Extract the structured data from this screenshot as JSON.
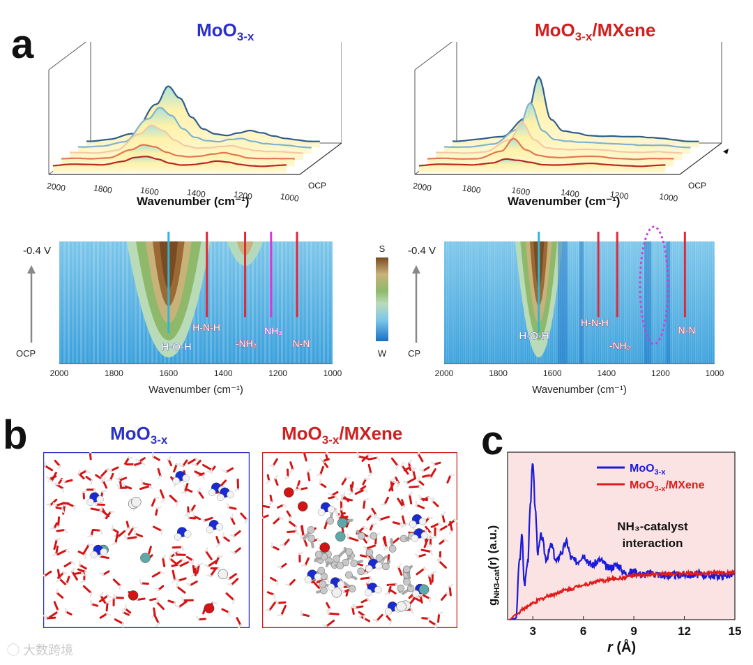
{
  "panel_labels": {
    "a": "a",
    "b": "b",
    "c": "c"
  },
  "panel_a": {
    "left_title": {
      "base": "MoO",
      "sub": "3-x"
    },
    "right_title": {
      "base": "MoO",
      "sub": "3-x",
      "rest": "/MXene"
    },
    "waterfall_xlabel": "Wavenumber (cm⁻¹)",
    "waterfall_ticks": [
      "2000",
      "1800",
      "1600",
      "1400",
      "1200",
      "1000"
    ],
    "depth_top": "-0.4 V",
    "depth_bottom": "OCP",
    "map_top": "-0.4 V",
    "map_bottom": "OCP",
    "map_xlabel": "Wavenumber (cm⁻¹)",
    "map_ticks": [
      "2000",
      "1800",
      "1600",
      "1400",
      "1200",
      "1000"
    ],
    "colorbar_top": "S",
    "colorbar_bottom": "W",
    "left_markers": {
      "hoh": "H-O-H",
      "hnnh": "H-N-H",
      "nh2": "-NH₂",
      "nh3": "NH₃",
      "nn": "N-N"
    },
    "right_markers": {
      "hoh": "H-O-H",
      "hnnh": "H-N-H",
      "nh2": "-NH₂",
      "nn": "N-N"
    },
    "colors": {
      "hoh": "#2fb5d6",
      "nh": "#e0283a",
      "nh3": "#d63ad6",
      "ellipse": "#cc3fd6"
    }
  },
  "panel_b": {
    "left_title": {
      "base": "MoO",
      "sub": "3-x"
    },
    "right_title": {
      "base": "MoO",
      "sub": "3-x",
      "rest": "/MXene"
    }
  },
  "panel_c": {
    "ylabel_main": "g",
    "ylabel_sub": "NH3-cat",
    "ylabel_rest": "(r)  (a.u.)",
    "xlabel_italic": "r",
    "xlabel_rest": " (Å)",
    "annotation_line1": "NH₃-catalyst",
    "annotation_line2": "interaction",
    "legend": [
      {
        "base": "MoO",
        "sub": "3-x",
        "rest": "",
        "color": "#1a1adb"
      },
      {
        "base": "MoO",
        "sub": "3-x",
        "rest": "/MXene",
        "color": "#e01b1b"
      }
    ]
  },
  "watermark": "大数跨境",
  "chart_data": [
    {
      "type": "line",
      "panel": "a-left",
      "note": "in-situ FTIR waterfall, MoO3-x",
      "xlabel": "Wavenumber (cm⁻¹)",
      "xlim": [
        2000,
        1000
      ],
      "x": [
        2000,
        1900,
        1800,
        1700,
        1650,
        1600,
        1550,
        1500,
        1450,
        1400,
        1350,
        1300,
        1250,
        1200,
        1150,
        1100,
        1050,
        1000
      ],
      "series": [
        {
          "values": [
            0,
            0.05,
            0.1,
            0.3,
            0.5,
            0.55,
            0.4,
            0.2,
            0.1,
            0.1,
            0.15,
            0.25,
            0.2,
            0.1,
            0.05,
            0.0,
            0.0,
            0.0
          ]
        },
        {
          "values": [
            0,
            0.05,
            0.15,
            0.6,
            0.9,
            0.8,
            0.5,
            0.3,
            0.2,
            0.2,
            0.3,
            0.4,
            0.3,
            0.15,
            0.1,
            0.05,
            0.0,
            0.0
          ]
        },
        {
          "values": [
            0,
            0.05,
            0.2,
            1.2,
            1.8,
            1.5,
            0.9,
            0.5,
            0.3,
            0.3,
            0.4,
            0.5,
            0.35,
            0.2,
            0.1,
            0.05,
            0.0,
            0.0
          ]
        },
        {
          "values": [
            0,
            0.1,
            0.3,
            1.8,
            2.6,
            2.1,
            1.2,
            0.6,
            0.35,
            0.3,
            0.5,
            0.6,
            0.4,
            0.2,
            0.1,
            0.05,
            0.0,
            0.0
          ]
        },
        {
          "values": [
            0,
            0.1,
            0.4,
            2.4,
            3.6,
            2.8,
            1.5,
            0.7,
            0.4,
            0.35,
            0.55,
            0.7,
            0.5,
            0.25,
            0.1,
            0.05,
            0.0,
            0.0
          ]
        }
      ]
    },
    {
      "type": "line",
      "panel": "a-right",
      "note": "in-situ FTIR waterfall, MoO3-x/MXene",
      "xlabel": "Wavenumber (cm⁻¹)",
      "xlim": [
        2000,
        1000
      ],
      "x": [
        2000,
        1900,
        1800,
        1700,
        1650,
        1600,
        1550,
        1500,
        1450,
        1400,
        1350,
        1300,
        1250,
        1200,
        1150,
        1100,
        1050,
        1000
      ],
      "series": [
        {
          "values": [
            0,
            0.05,
            0.1,
            0.2,
            0.4,
            0.3,
            0.2,
            0.1,
            0.1,
            0.1,
            0.1,
            0.1,
            0.05,
            0.05,
            0.05,
            0.0,
            0.0,
            0.0
          ]
        },
        {
          "values": [
            0,
            0.05,
            0.1,
            0.5,
            1.3,
            0.6,
            0.3,
            0.2,
            0.15,
            0.15,
            0.15,
            0.15,
            0.1,
            0.1,
            0.05,
            0.05,
            0.0,
            0.0
          ]
        },
        {
          "values": [
            0,
            0.05,
            0.1,
            0.8,
            2.0,
            0.9,
            0.4,
            0.3,
            0.2,
            0.2,
            0.2,
            0.2,
            0.15,
            0.1,
            0.05,
            0.05,
            0.0,
            0.0
          ]
        },
        {
          "values": [
            0,
            0.05,
            0.15,
            1.1,
            2.9,
            1.1,
            0.5,
            0.35,
            0.25,
            0.25,
            0.25,
            0.25,
            0.2,
            0.1,
            0.05,
            0.05,
            0.0,
            0.0
          ]
        },
        {
          "values": [
            0,
            0.1,
            0.2,
            1.5,
            4.2,
            1.4,
            0.6,
            0.45,
            0.3,
            0.3,
            0.35,
            0.3,
            0.25,
            0.15,
            0.1,
            0.05,
            0.0,
            0.0
          ]
        }
      ]
    },
    {
      "type": "heatmap",
      "panel": "a-map-left",
      "xlabel": "Wavenumber (cm⁻¹)",
      "xlim": [
        2000,
        1000
      ],
      "markers": [
        {
          "label": "H-O-H",
          "x": 1600
        },
        {
          "label": "H-N-H",
          "x": 1460
        },
        {
          "label": "-NH₂",
          "x": 1320
        },
        {
          "label": "NH₃",
          "x": 1225
        },
        {
          "label": "N-N",
          "x": 1130
        }
      ]
    },
    {
      "type": "heatmap",
      "panel": "a-map-right",
      "xlabel": "Wavenumber (cm⁻¹)",
      "xlim": [
        2000,
        1000
      ],
      "markers": [
        {
          "label": "H-O-H",
          "x": 1650
        },
        {
          "label": "H-N-H",
          "x": 1430
        },
        {
          "label": "-NH₂",
          "x": 1360
        },
        {
          "label": "N-N",
          "x": 1110
        }
      ]
    },
    {
      "type": "line",
      "panel": "c",
      "xlabel": "r (Å)",
      "ylabel": "gNH3-cat(r)  (a.u.)",
      "xlim": [
        1.5,
        15
      ],
      "xticks": [
        3,
        6,
        9,
        12,
        15
      ],
      "ylim": [
        0,
        2.6
      ],
      "series": [
        {
          "name": "MoO3-x",
          "x": [
            1.6,
            2.0,
            2.2,
            2.35,
            2.5,
            2.7,
            2.85,
            3.0,
            3.15,
            3.3,
            3.5,
            3.8,
            4.1,
            4.4,
            4.7,
            5.0,
            5.3,
            5.6,
            6.0,
            6.5,
            7.0,
            7.5,
            8.0,
            8.5,
            9.0,
            9.5,
            10.0,
            11.0,
            12.0,
            13.0,
            14.0,
            15.0
          ],
          "y": [
            0.0,
            0.02,
            0.9,
            1.3,
            0.55,
            0.9,
            1.8,
            2.45,
            1.7,
            1.05,
            1.3,
            0.95,
            1.15,
            0.9,
            1.05,
            1.2,
            0.95,
            0.9,
            1.0,
            0.85,
            0.92,
            0.8,
            0.85,
            0.72,
            0.75,
            0.7,
            0.72,
            0.68,
            0.7,
            0.7,
            0.68,
            0.7
          ]
        },
        {
          "name": "MoO3-x/MXene",
          "x": [
            1.6,
            2.0,
            2.5,
            3.0,
            3.5,
            4.0,
            5.0,
            6.0,
            7.0,
            8.0,
            9.0,
            10.0,
            11.0,
            12.0,
            13.0,
            14.0,
            15.0
          ],
          "y": [
            0.0,
            0.08,
            0.18,
            0.25,
            0.32,
            0.38,
            0.46,
            0.54,
            0.6,
            0.64,
            0.68,
            0.7,
            0.71,
            0.72,
            0.72,
            0.73,
            0.73
          ]
        }
      ]
    }
  ]
}
